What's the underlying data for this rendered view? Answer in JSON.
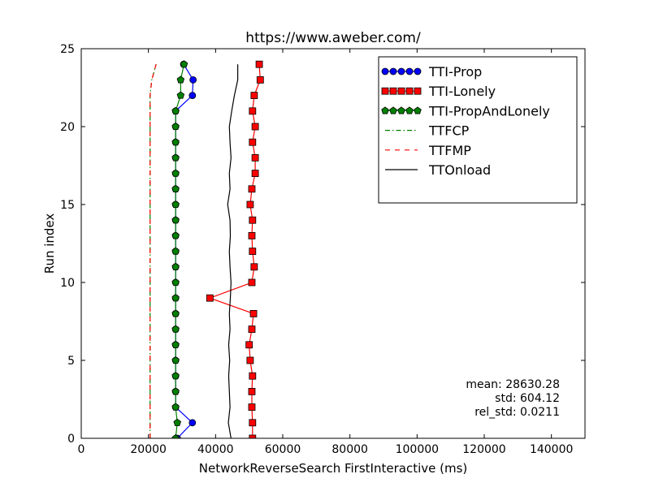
{
  "chart_data": {
    "type": "line",
    "title": "https://www.aweber.com/",
    "xlabel": "NetworkReverseSearch FirstInteractive (ms)",
    "ylabel": "Run index",
    "xlim": [
      0,
      150000
    ],
    "ylim": [
      0,
      25
    ],
    "xticks": [
      0,
      20000,
      40000,
      60000,
      80000,
      100000,
      120000,
      140000
    ],
    "xtick_labels": [
      "0",
      "20000",
      "40000",
      "60000",
      "80000",
      "100000",
      "120000",
      "140000"
    ],
    "yticks": [
      0,
      5,
      10,
      15,
      20,
      25
    ],
    "ytick_labels": [
      "0",
      "5",
      "10",
      "15",
      "20",
      "25"
    ],
    "grid": false,
    "legend_position": "top-right",
    "colors": {
      "tti_prop": "#0000ff",
      "tti_lonely": "#ff0000",
      "tti_prop_and_lonely": "#008000",
      "ttfcp": "#008000",
      "ttfmp": "#ff0000",
      "ttonload": "#000000"
    },
    "series": [
      {
        "name": "TTI-Prop",
        "style": "line-circle",
        "color": "#0000ff",
        "points": [
          [
            28600,
            0
          ],
          [
            33100,
            1
          ],
          [
            28100,
            2
          ],
          [
            28100,
            3
          ],
          [
            28100,
            4
          ],
          [
            28100,
            5
          ],
          [
            28100,
            6
          ],
          [
            28100,
            7
          ],
          [
            28100,
            8
          ],
          [
            28100,
            9
          ],
          [
            28100,
            10
          ],
          [
            28100,
            11
          ],
          [
            28100,
            12
          ],
          [
            28100,
            13
          ],
          [
            28100,
            14
          ],
          [
            28100,
            15
          ],
          [
            28100,
            16
          ],
          [
            28100,
            17
          ],
          [
            28100,
            18
          ],
          [
            28100,
            19
          ],
          [
            28100,
            20
          ],
          [
            28100,
            21
          ],
          [
            33100,
            22
          ],
          [
            33300,
            23
          ],
          [
            30500,
            24
          ]
        ]
      },
      {
        "name": "TTI-Lonely",
        "style": "line-square",
        "color": "#ff0000",
        "points": [
          [
            51000,
            0
          ],
          [
            51000,
            1
          ],
          [
            50800,
            2
          ],
          [
            50800,
            3
          ],
          [
            51000,
            4
          ],
          [
            50300,
            5
          ],
          [
            50000,
            6
          ],
          [
            50800,
            7
          ],
          [
            51300,
            8
          ],
          [
            38300,
            9
          ],
          [
            50800,
            10
          ],
          [
            51500,
            11
          ],
          [
            51000,
            12
          ],
          [
            50800,
            13
          ],
          [
            51000,
            14
          ],
          [
            50300,
            15
          ],
          [
            50800,
            16
          ],
          [
            51800,
            17
          ],
          [
            51800,
            18
          ],
          [
            51000,
            19
          ],
          [
            51800,
            20
          ],
          [
            51000,
            21
          ],
          [
            51500,
            22
          ],
          [
            53300,
            23
          ],
          [
            53000,
            24
          ]
        ]
      },
      {
        "name": "TTI-PropAndLonely",
        "style": "line-pentagon",
        "color": "#008000",
        "points": [
          [
            28100,
            0
          ],
          [
            28600,
            1
          ],
          [
            28100,
            2
          ],
          [
            28100,
            3
          ],
          [
            28100,
            4
          ],
          [
            28100,
            5
          ],
          [
            28100,
            6
          ],
          [
            28100,
            7
          ],
          [
            28100,
            8
          ],
          [
            28100,
            9
          ],
          [
            28100,
            10
          ],
          [
            28100,
            11
          ],
          [
            28100,
            12
          ],
          [
            28100,
            13
          ],
          [
            28100,
            14
          ],
          [
            28100,
            15
          ],
          [
            28100,
            16
          ],
          [
            28100,
            17
          ],
          [
            28100,
            18
          ],
          [
            28100,
            19
          ],
          [
            28100,
            20
          ],
          [
            28100,
            21
          ],
          [
            29600,
            22
          ],
          [
            29600,
            23
          ],
          [
            30600,
            24
          ]
        ]
      },
      {
        "name": "TTFCP",
        "style": "dashdot",
        "color": "#008000",
        "points": [
          [
            20500,
            0
          ],
          [
            20500,
            1
          ],
          [
            20500,
            2
          ],
          [
            20500,
            3
          ],
          [
            20500,
            4
          ],
          [
            20500,
            5
          ],
          [
            20500,
            6
          ],
          [
            20500,
            7
          ],
          [
            20500,
            8
          ],
          [
            20500,
            9
          ],
          [
            20500,
            10
          ],
          [
            20500,
            11
          ],
          [
            20500,
            12
          ],
          [
            20500,
            13
          ],
          [
            20500,
            14
          ],
          [
            20500,
            15
          ],
          [
            20500,
            16
          ],
          [
            20500,
            17
          ],
          [
            20500,
            18
          ],
          [
            20500,
            19
          ],
          [
            20500,
            20
          ],
          [
            20500,
            21
          ],
          [
            20500,
            22
          ],
          [
            21000,
            23
          ],
          [
            22300,
            24
          ]
        ]
      },
      {
        "name": "TTFMP",
        "style": "dashed",
        "color": "#ff0000",
        "points": [
          [
            20500,
            0
          ],
          [
            20500,
            1
          ],
          [
            20500,
            2
          ],
          [
            20500,
            3
          ],
          [
            20500,
            4
          ],
          [
            20500,
            5
          ],
          [
            20500,
            6
          ],
          [
            20500,
            7
          ],
          [
            20500,
            8
          ],
          [
            20500,
            9
          ],
          [
            20500,
            10
          ],
          [
            20500,
            11
          ],
          [
            20500,
            12
          ],
          [
            20500,
            13
          ],
          [
            20500,
            14
          ],
          [
            20500,
            15
          ],
          [
            20500,
            16
          ],
          [
            20500,
            17
          ],
          [
            20500,
            18
          ],
          [
            20500,
            19
          ],
          [
            20500,
            20
          ],
          [
            20500,
            21
          ],
          [
            20500,
            22
          ],
          [
            21000,
            23
          ],
          [
            22300,
            24
          ]
        ]
      },
      {
        "name": "TTOnload",
        "style": "solid",
        "color": "#000000",
        "points": [
          [
            44600,
            0
          ],
          [
            43800,
            1
          ],
          [
            44300,
            2
          ],
          [
            44100,
            3
          ],
          [
            43900,
            4
          ],
          [
            44200,
            5
          ],
          [
            43900,
            6
          ],
          [
            44300,
            7
          ],
          [
            44100,
            8
          ],
          [
            44400,
            9
          ],
          [
            44600,
            10
          ],
          [
            44300,
            11
          ],
          [
            44100,
            12
          ],
          [
            44400,
            13
          ],
          [
            44300,
            14
          ],
          [
            43600,
            15
          ],
          [
            44300,
            16
          ],
          [
            44100,
            17
          ],
          [
            44600,
            18
          ],
          [
            44300,
            19
          ],
          [
            44100,
            20
          ],
          [
            44800,
            21
          ],
          [
            45600,
            22
          ],
          [
            46600,
            23
          ],
          [
            46600,
            24
          ]
        ]
      }
    ],
    "annotation_lines": [
      "mean: 28630.28",
      "std: 604.12",
      "rel_std: 0.0211"
    ]
  }
}
